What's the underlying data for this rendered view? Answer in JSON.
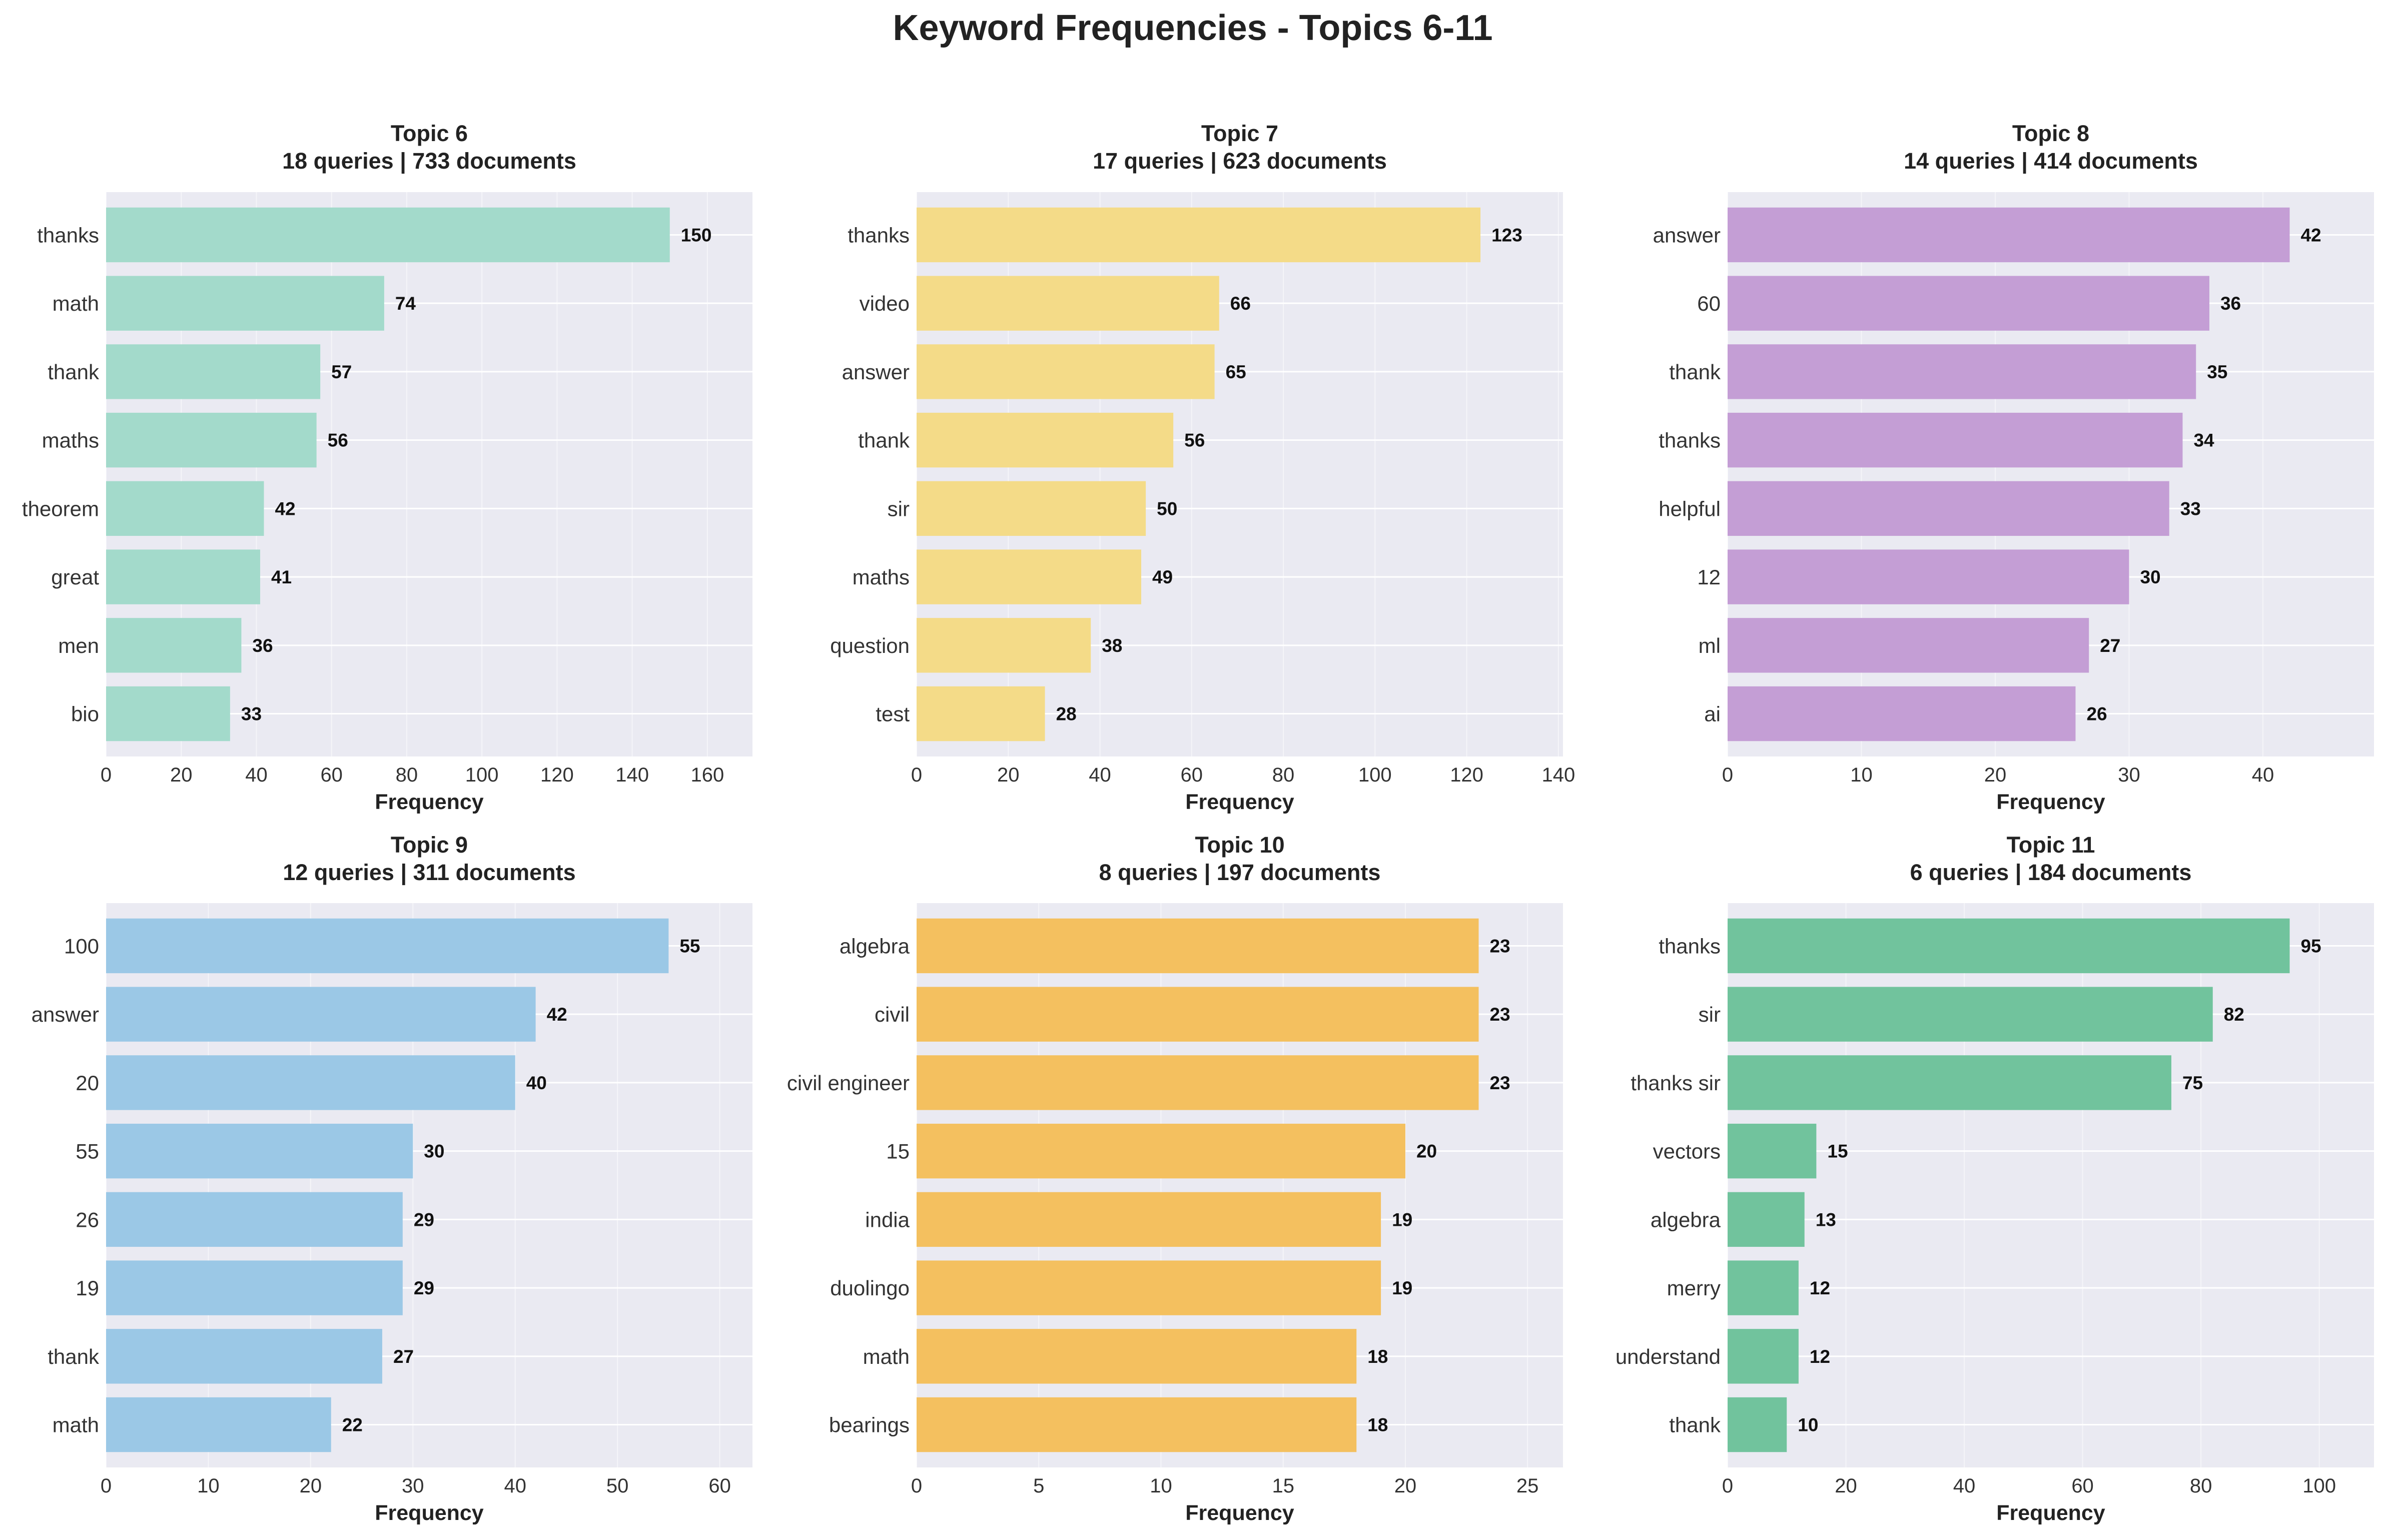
{
  "title": "Keyword Frequencies - Topics 6-11",
  "chart_data": [
    {
      "type": "bar",
      "orientation": "horizontal",
      "title_line1": "Topic 6",
      "title_line2": "18 queries | 733 documents",
      "xlabel": "Frequency",
      "color": "#a3dacb",
      "categories": [
        "thanks",
        "math",
        "thank",
        "maths",
        "theorem",
        "great",
        "men",
        "bio"
      ],
      "values": [
        150,
        74,
        57,
        56,
        42,
        41,
        36,
        33
      ],
      "xlim": [
        0,
        172
      ],
      "xticks": [
        0,
        20,
        40,
        60,
        80,
        100,
        120,
        140,
        160
      ],
      "grid": true
    },
    {
      "type": "bar",
      "orientation": "horizontal",
      "title_line1": "Topic 7",
      "title_line2": "17 queries | 623 documents",
      "xlabel": "Frequency",
      "color": "#f4db88",
      "categories": [
        "thanks",
        "video",
        "answer",
        "thank",
        "sir",
        "maths",
        "question",
        "test"
      ],
      "values": [
        123,
        66,
        65,
        56,
        50,
        49,
        38,
        28
      ],
      "xlim": [
        0,
        141
      ],
      "xticks": [
        0,
        20,
        40,
        60,
        80,
        100,
        120,
        140
      ],
      "grid": true
    },
    {
      "type": "bar",
      "orientation": "horizontal",
      "title_line1": "Topic 8",
      "title_line2": "14 queries | 414 documents",
      "xlabel": "Frequency",
      "color": "#c49ed5",
      "categories": [
        "answer",
        "60",
        "thank",
        "thanks",
        "helpful",
        "12",
        "ml",
        "ai"
      ],
      "values": [
        42,
        36,
        35,
        34,
        33,
        30,
        27,
        26
      ],
      "xlim": [
        0,
        48.3
      ],
      "xticks": [
        0,
        10,
        20,
        30,
        40
      ],
      "grid": true
    },
    {
      "type": "bar",
      "orientation": "horizontal",
      "title_line1": "Topic 9",
      "title_line2": "12 queries | 311 documents",
      "xlabel": "Frequency",
      "color": "#9bc8e6",
      "categories": [
        "100",
        "answer",
        "20",
        "55",
        "26",
        "19",
        "thank",
        "math"
      ],
      "values": [
        55,
        42,
        40,
        30,
        29,
        29,
        27,
        22
      ],
      "xlim": [
        0,
        63.2
      ],
      "xticks": [
        0,
        10,
        20,
        30,
        40,
        50,
        60
      ],
      "grid": true
    },
    {
      "type": "bar",
      "orientation": "horizontal",
      "title_line1": "Topic 10",
      "title_line2": "8 queries | 197 documents",
      "xlabel": "Frequency",
      "color": "#f4c05f",
      "categories": [
        "algebra",
        "civil",
        "civil engineer",
        "15",
        "india",
        "duolingo",
        "math",
        "bearings"
      ],
      "values": [
        23,
        23,
        23,
        20,
        19,
        19,
        18,
        18
      ],
      "xlim": [
        0,
        26.45
      ],
      "xticks": [
        0,
        5,
        10,
        15,
        20,
        25
      ],
      "grid": true
    },
    {
      "type": "bar",
      "orientation": "horizontal",
      "title_line1": "Topic 11",
      "title_line2": "6 queries | 184 documents",
      "xlabel": "Frequency",
      "color": "#71c39d",
      "categories": [
        "thanks",
        "sir",
        "thanks sir",
        "vectors",
        "algebra",
        "merry",
        "understand",
        "thank"
      ],
      "values": [
        95,
        82,
        75,
        15,
        13,
        12,
        12,
        10
      ],
      "xlim": [
        0,
        109.25
      ],
      "xticks": [
        0,
        20,
        40,
        60,
        80,
        100
      ],
      "grid": true
    }
  ]
}
